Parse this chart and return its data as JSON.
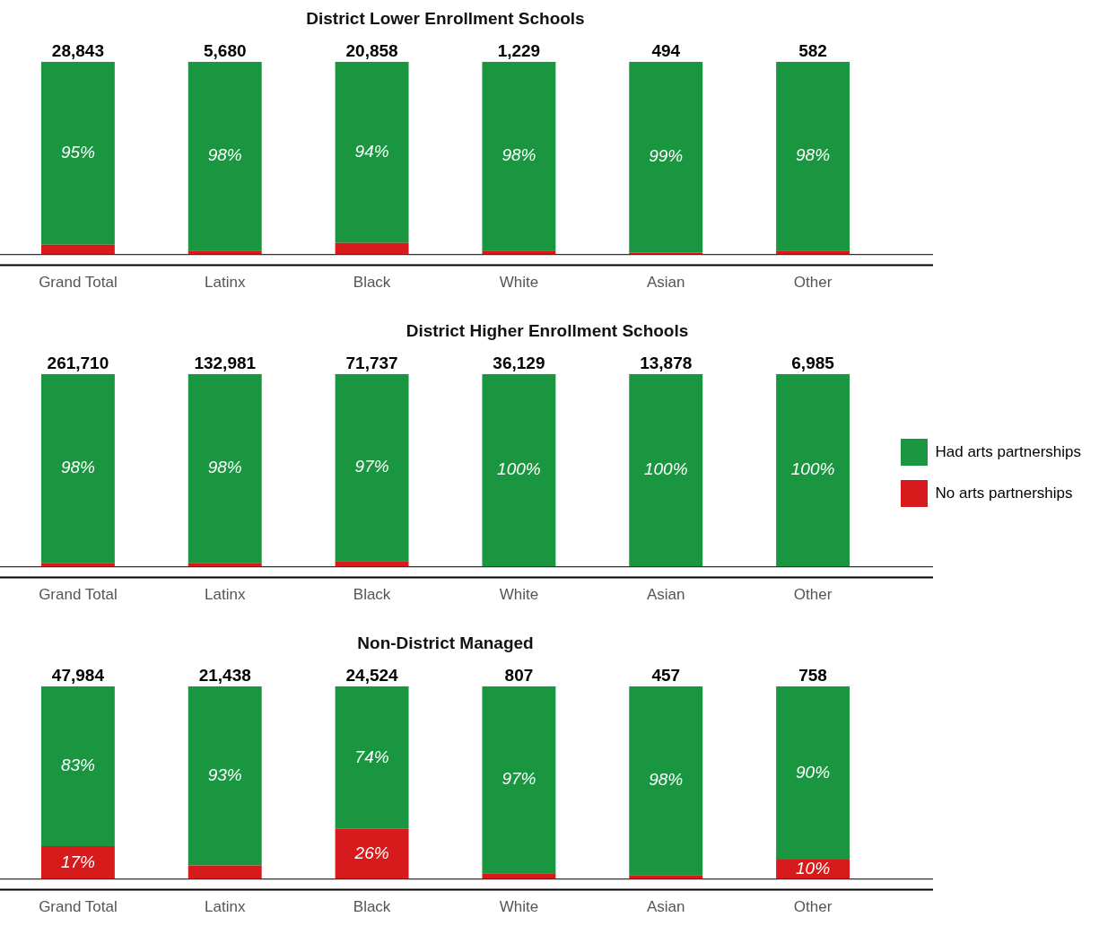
{
  "chart_data": [
    {
      "type": "bar",
      "title": "District Lower Enrollment Schools",
      "stacked": true,
      "categories": [
        "Grand Total",
        "Latinx",
        "Black",
        "White",
        "Asian",
        "Other"
      ],
      "ylim": [
        0,
        100
      ],
      "tick_labels": "x",
      "grid": false,
      "legend": false,
      "series": [
        {
          "color": "#d71a1c",
          "values": [
            5,
            2,
            6,
            2,
            1,
            2
          ],
          "value_labels": [
            null,
            null,
            null,
            null,
            null,
            null
          ]
        },
        {
          "color": "#1a9641",
          "values": [
            95,
            98,
            94,
            98,
            99,
            98
          ],
          "value_labels": [
            "95%",
            "98%",
            "94%",
            "98%",
            "99%",
            "98%"
          ]
        }
      ],
      "annotations": [
        {
          "text": "28,843",
          "x": "Grand Total",
          "y": 100
        },
        {
          "text": "5,680",
          "x": "Latinx",
          "y": 100
        },
        {
          "text": "20,858",
          "x": "Black",
          "y": 100
        },
        {
          "text": "1,229",
          "x": "White",
          "y": 100
        },
        {
          "text": "494",
          "x": "Asian",
          "y": 100
        },
        {
          "text": "582",
          "x": "Other",
          "y": 100
        }
      ]
    },
    {
      "type": "bar",
      "title": "District Higher Enrollment Schools",
      "stacked": true,
      "categories": [
        "Grand Total",
        "Latinx",
        "Black",
        "White",
        "Asian",
        "Other"
      ],
      "ylim": [
        0,
        100
      ],
      "tick_labels": "x",
      "grid": false,
      "legend": "right",
      "series": [
        {
          "name": "No arts partnerships",
          "color": "#d71a1c",
          "values": [
            2,
            2,
            3,
            0,
            0,
            0
          ],
          "value_labels": [
            null,
            null,
            null,
            null,
            null,
            null
          ]
        },
        {
          "name": "Had arts partnerships",
          "color": "#1a9641",
          "values": [
            98,
            98,
            97,
            100,
            100,
            100
          ],
          "value_labels": [
            "98%",
            "98%",
            "97%",
            "100%",
            "100%",
            "100%"
          ]
        }
      ],
      "annotations": [
        {
          "text": "261,710",
          "x": "Grand Total",
          "y": 100
        },
        {
          "text": "132,981",
          "x": "Latinx",
          "y": 100
        },
        {
          "text": "71,737",
          "x": "Black",
          "y": 100
        },
        {
          "text": "36,129",
          "x": "White",
          "y": 100
        },
        {
          "text": "13,878",
          "x": "Asian",
          "y": 100
        },
        {
          "text": "6,985",
          "x": "Other",
          "y": 100
        }
      ]
    },
    {
      "type": "bar",
      "title": "Non-District Managed",
      "stacked": true,
      "categories": [
        "Grand Total",
        "Latinx",
        "Black",
        "White",
        "Asian",
        "Other"
      ],
      "ylim": [
        0,
        100
      ],
      "tick_labels": "x",
      "grid": false,
      "legend": false,
      "series": [
        {
          "color": "#d71a1c",
          "values": [
            17,
            7,
            26,
            3,
            2,
            10
          ],
          "value_labels": [
            "17%",
            null,
            "26%",
            null,
            null,
            "10%"
          ]
        },
        {
          "color": "#1a9641",
          "values": [
            83,
            93,
            74,
            97,
            98,
            90
          ],
          "value_labels": [
            "83%",
            "93%",
            "74%",
            "97%",
            "98%",
            "90%"
          ]
        }
      ],
      "annotations": [
        {
          "text": "47,984",
          "x": "Grand Total",
          "y": 100
        },
        {
          "text": "21,438",
          "x": "Latinx",
          "y": 100
        },
        {
          "text": "24,524",
          "x": "Black",
          "y": 100
        },
        {
          "text": "807",
          "x": "White",
          "y": 100
        },
        {
          "text": "457",
          "x": "Asian",
          "y": 100
        },
        {
          "text": "758",
          "x": "Other",
          "y": 100
        }
      ]
    }
  ]
}
